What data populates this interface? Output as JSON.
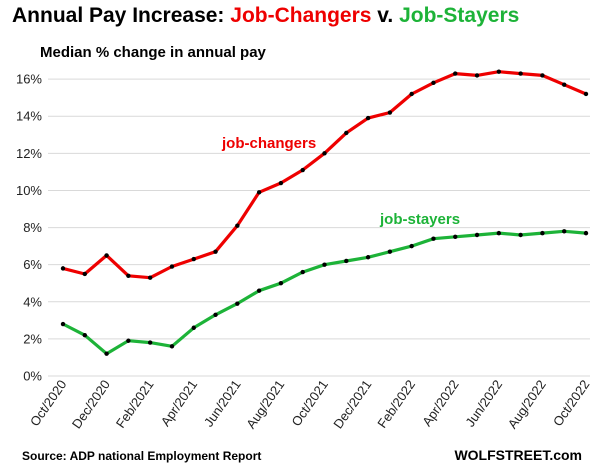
{
  "header": {
    "title_prefix": "Annual Pay Increase: ",
    "title_changers": "Job-Changers",
    "title_sep": " v. ",
    "title_stayers": "Job-Stayers",
    "subtitle": "Median % change in annual pay"
  },
  "footer": {
    "source": "Source: ADP national Employment Report",
    "brand": "WOLFSTREET.com"
  },
  "colors": {
    "changers": "#ee0000",
    "stayers": "#1db338",
    "marker": "#000000",
    "grid": "#d9d9d9"
  },
  "chart_data": {
    "type": "line",
    "title": "Annual Pay Increase: Job-Changers v. Job-Stayers",
    "subtitle": "Median % change in annual pay",
    "x": [
      "Oct/2020",
      "Nov/2020",
      "Dec/2020",
      "Jan/2021",
      "Feb/2021",
      "Mar/2021",
      "Apr/2021",
      "May/2021",
      "Jun/2021",
      "Jul/2021",
      "Aug/2021",
      "Sep/2021",
      "Oct/2021",
      "Nov/2021",
      "Dec/2021",
      "Jan/2022",
      "Feb/2022",
      "Mar/2022",
      "Apr/2022",
      "May/2022",
      "Jun/2022",
      "Jul/2022",
      "Aug/2022",
      "Sep/2022",
      "Oct/2022"
    ],
    "xtick_labels": [
      "Oct/2020",
      "Dec/2020",
      "Feb/2021",
      "Apr/2021",
      "Jun/2021",
      "Aug/2021",
      "Oct/2021",
      "Dec/2021",
      "Feb/2022",
      "Apr/2022",
      "Jun/2022",
      "Aug/2022",
      "Oct/2022"
    ],
    "yticks": [
      0,
      2,
      4,
      6,
      8,
      10,
      12,
      14,
      16
    ],
    "ytick_labels": [
      "0%",
      "2%",
      "4%",
      "6%",
      "8%",
      "10%",
      "12%",
      "14%",
      "16%"
    ],
    "ylim": [
      0,
      16.6
    ],
    "grid": true,
    "series": [
      {
        "name": "job-changers",
        "values": [
          5.8,
          5.5,
          6.5,
          5.4,
          5.3,
          5.9,
          6.3,
          6.7,
          8.1,
          9.9,
          10.4,
          11.1,
          12.0,
          13.1,
          13.9,
          14.2,
          15.2,
          15.8,
          16.3,
          16.2,
          16.4,
          16.3,
          16.2,
          15.7,
          15.2
        ]
      },
      {
        "name": "job-stayers",
        "values": [
          2.8,
          2.2,
          1.2,
          1.9,
          1.8,
          1.6,
          2.6,
          3.3,
          3.9,
          4.6,
          5.0,
          5.6,
          6.0,
          6.2,
          6.4,
          6.7,
          7.0,
          7.4,
          7.5,
          7.6,
          7.7,
          7.6,
          7.7,
          7.8,
          7.7
        ]
      }
    ]
  }
}
